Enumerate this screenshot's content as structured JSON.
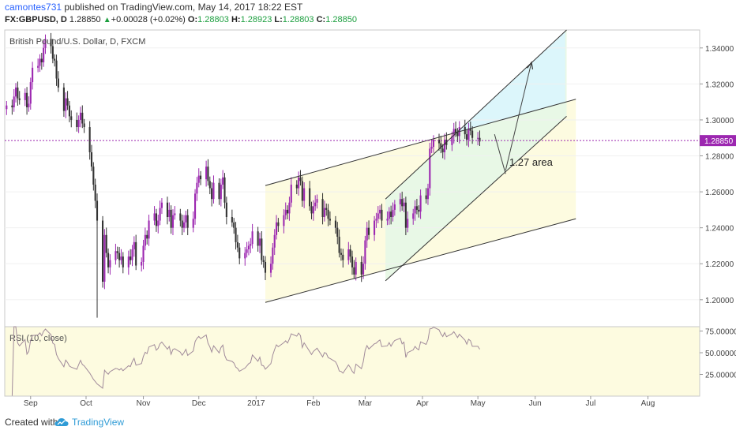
{
  "header": {
    "username": "camontes731",
    "publish_text": " published on TradingView.com, May 14, 2017 18:22 EST",
    "symbol": "FX:GBPUSD, D",
    "last": "1.28850",
    "change": "+0.00028 (+0.02%)",
    "o_label": "O:",
    "open": "1.28803",
    "h_label": "H:",
    "high": "1.28923",
    "l_label": "L:",
    "low": "1.28803",
    "c_label": "C:",
    "close": "1.28850"
  },
  "chart_data": {
    "type": "candlestick",
    "title": "British Pound/U.S. Dollar, D, FXCM",
    "price_axis": {
      "ticks": [
        "1.34000",
        "1.32000",
        "1.30000",
        "1.28000",
        "1.26000",
        "1.24000",
        "1.22000",
        "1.20000"
      ],
      "range": [
        1.185,
        1.35
      ]
    },
    "x_ticks": [
      "Sep",
      "Oct",
      "Nov",
      "Dec",
      "2017",
      "Feb",
      "Mar",
      "Apr",
      "May",
      "Jun",
      "Jul",
      "Aug"
    ],
    "x_range": [
      "2016-08-18",
      "2017-08-29"
    ],
    "current_price": "1.28850",
    "annotation": "1.27 area",
    "close_series": {
      "start_date": "2016-08-19",
      "step": "1 trading day",
      "values": [
        1.308,
        1.307,
        1.313,
        1.318,
        1.312,
        1.311,
        1.315,
        1.307,
        1.309,
        1.321,
        1.329,
        1.33,
        1.334,
        1.332,
        1.34,
        1.345,
        1.341,
        1.334,
        1.333,
        1.323,
        1.318,
        1.305,
        1.312,
        1.308,
        1.302,
        1.3,
        1.296,
        1.3,
        1.304,
        1.298,
        1.296,
        1.282,
        1.274,
        1.264,
        1.255,
        1.244,
        1.21,
        1.236,
        1.226,
        1.218,
        1.222,
        1.227,
        1.226,
        1.222,
        1.224,
        1.218,
        1.224,
        1.222,
        1.228,
        1.232,
        1.219,
        1.221,
        1.23,
        1.236,
        1.234,
        1.244,
        1.248,
        1.241,
        1.244,
        1.251,
        1.254,
        1.246,
        1.25,
        1.24,
        1.247,
        1.248,
        1.244,
        1.24,
        1.243,
        1.247,
        1.24,
        1.245,
        1.259,
        1.265,
        1.269,
        1.267,
        1.274,
        1.266,
        1.262,
        1.256,
        1.265,
        1.256,
        1.264,
        1.268,
        1.254,
        1.246,
        1.243,
        1.24,
        1.232,
        1.229,
        1.223,
        1.226,
        1.228,
        1.23,
        1.231,
        1.238,
        1.23,
        1.234,
        1.222,
        1.221,
        1.215,
        1.22,
        1.229,
        1.236,
        1.243,
        1.241,
        1.247,
        1.25,
        1.248,
        1.254,
        1.264,
        1.262,
        1.268,
        1.266,
        1.255,
        1.262,
        1.252,
        1.248,
        1.252,
        1.254,
        1.256,
        1.246,
        1.251,
        1.25,
        1.245,
        1.244,
        1.24,
        1.235,
        1.226,
        1.225,
        1.222,
        1.228,
        1.224,
        1.218,
        1.214,
        1.221,
        1.214,
        1.22,
        1.233,
        1.24,
        1.236,
        1.244,
        1.245,
        1.248,
        1.25,
        1.244,
        1.245,
        1.249,
        1.246,
        1.25,
        1.253,
        1.256,
        1.252,
        1.254,
        1.24,
        1.245,
        1.248,
        1.252,
        1.25,
        1.249,
        1.258,
        1.256,
        1.262,
        1.284,
        1.285,
        1.289,
        1.287,
        1.284,
        1.282,
        1.289,
        1.286,
        1.291,
        1.295,
        1.293,
        1.291,
        1.296,
        1.292,
        1.289,
        1.295,
        1.294,
        1.29,
        1.29,
        1.288
      ]
    },
    "rsi": {
      "label": "RSI (10, close)",
      "ticks": [
        "75.00000",
        "50.00000",
        "25.00000"
      ],
      "range": [
        0,
        80
      ],
      "current": 55
    },
    "drawings": [
      {
        "name": "wide-channel-upper",
        "from": [
          "2017-01-06",
          1.2635
        ],
        "to": [
          "2017-06-23",
          1.3115
        ]
      },
      {
        "name": "wide-channel-lower",
        "from": [
          "2017-01-06",
          1.1985
        ],
        "to": [
          "2017-06-23",
          1.245
        ]
      },
      {
        "name": "steep-channel-upper",
        "from": [
          "2017-03-12",
          1.256
        ],
        "to": [
          "2017-06-18",
          1.35
        ]
      },
      {
        "name": "steep-channel-lower",
        "from": [
          "2017-03-12",
          1.2105
        ],
        "to": [
          "2017-06-18",
          1.302
        ]
      },
      {
        "name": "projection-down",
        "from": [
          "2017-05-10",
          1.292
        ],
        "to": [
          "2017-05-16",
          1.27
        ]
      },
      {
        "name": "projection-up-arrow",
        "from": [
          "2017-05-16",
          1.272
        ],
        "to": [
          "2017-05-30",
          1.332
        ]
      }
    ],
    "colors": {
      "bull": "#9c27b0",
      "bear": "#333333",
      "yellow_zone": "#fdfbe0",
      "green_zone": "#e8f8e6",
      "blue_zone": "#dcf6fb",
      "price_line": "#9c27b0",
      "price_label_bg": "#9c27b0",
      "rsi_line": "#a08a9a",
      "rsi_bg": "#fdfbe0"
    }
  },
  "footer": {
    "created_with": "Created with",
    "brand": "TradingView"
  }
}
